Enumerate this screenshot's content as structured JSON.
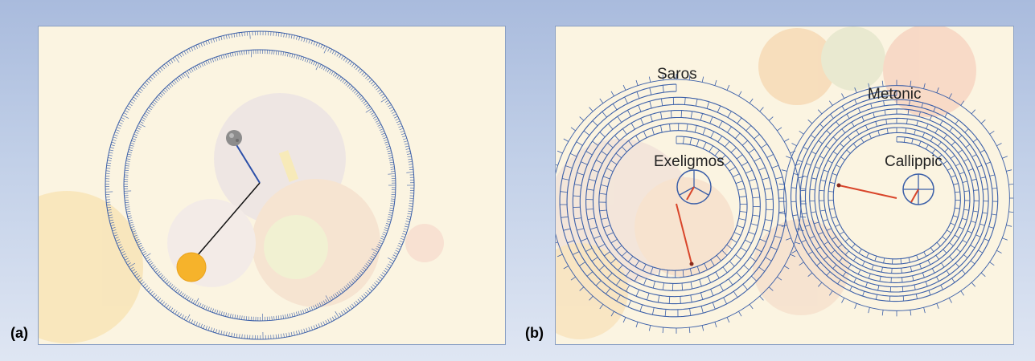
{
  "panels": {
    "a": {
      "label": "(a)"
    },
    "b": {
      "label": "(b)",
      "dials": {
        "saros": "Saros",
        "exeligmos": "Exeligmos",
        "metonic": "Metonic",
        "callippic": "Callippic"
      }
    }
  },
  "colors": {
    "background_top": "#a9bbdd",
    "background_bottom": "#dfe6f3",
    "panel_fill": "#fbf4e1",
    "dial_blue": "#3b5fa8",
    "pointer_red": "#d9452a",
    "sun": "#f6b32b",
    "moon": "#8c8c8c"
  },
  "icons": {
    "moon": "moon-icon",
    "sun": "sun-icon"
  }
}
